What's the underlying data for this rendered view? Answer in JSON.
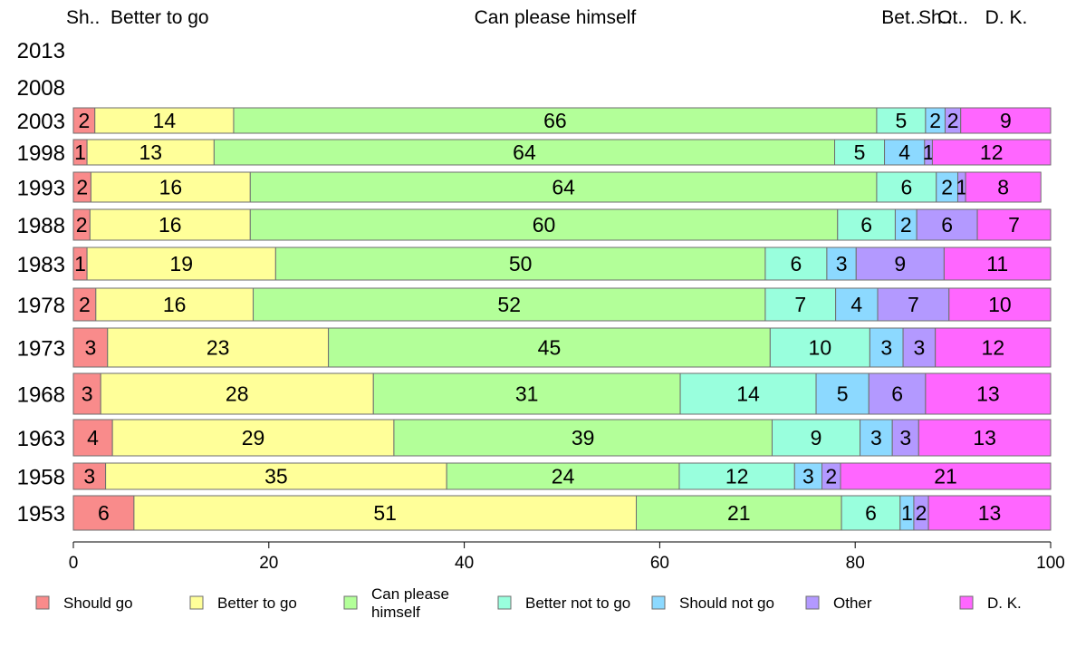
{
  "chart_data": {
    "type": "bar",
    "orientation": "horizontal",
    "stacked": true,
    "xlim": [
      0,
      100
    ],
    "x_ticks": [
      0,
      20,
      40,
      60,
      80,
      100
    ],
    "grid": false,
    "legend_position": "bottom",
    "top_labels": [
      {
        "text": "Sh..",
        "series": "Should go"
      },
      {
        "text": "Better to go",
        "series": "Better to go"
      },
      {
        "text": "Can please himself",
        "series": "Can please himself"
      },
      {
        "text": "Bet..",
        "series": "Better not to go"
      },
      {
        "text": "Sh..",
        "series": "Should not go"
      },
      {
        "text": "Ot..",
        "series": "Other"
      },
      {
        "text": "D. K.",
        "series": "D. K."
      }
    ],
    "categories": [
      "2013",
      "2008",
      "2003",
      "1998",
      "1993",
      "1988",
      "1983",
      "1978",
      "1973",
      "1968",
      "1963",
      "1958",
      "1953"
    ],
    "series": [
      {
        "name": "Should go",
        "legend_label": "Should go",
        "color": "#f98b8b",
        "values": [
          null,
          null,
          2.2,
          1.4,
          1.8,
          1.7,
          1.4,
          2.3,
          3.5,
          2.8,
          4.0,
          3.3,
          6.2
        ]
      },
      {
        "name": "Better to go",
        "legend_label": "Better to go",
        "color": "#ffff99",
        "values": [
          null,
          null,
          14.2,
          13.0,
          16.3,
          16.4,
          19.3,
          16.1,
          22.6,
          27.9,
          28.8,
          34.9,
          51.4
        ]
      },
      {
        "name": "Can please himself",
        "legend_label": "Can please\nhimself",
        "color": "#b3ff99",
        "values": [
          null,
          null,
          65.8,
          63.5,
          64.1,
          60.1,
          50.1,
          52.4,
          45.2,
          31.4,
          38.7,
          23.8,
          21.0
        ]
      },
      {
        "name": "Better not to go",
        "legend_label": "Better not to go",
        "color": "#99ffdd",
        "values": [
          null,
          null,
          5.0,
          5.1,
          6.1,
          5.9,
          6.3,
          7.2,
          10.2,
          13.9,
          9.0,
          11.8,
          6.0
        ]
      },
      {
        "name": "Should not go",
        "legend_label": "Should not go",
        "color": "#8cd9ff",
        "values": [
          null,
          null,
          2.0,
          4.1,
          2.2,
          2.2,
          3.0,
          4.3,
          3.4,
          5.4,
          3.3,
          2.8,
          1.4
        ]
      },
      {
        "name": "Other",
        "legend_label": "Other",
        "color": "#b399ff",
        "values": [
          null,
          null,
          1.6,
          0.8,
          0.8,
          6.2,
          9.0,
          7.3,
          3.3,
          5.8,
          2.7,
          1.9,
          1.5
        ]
      },
      {
        "name": "D. K.",
        "legend_label": "D. K.",
        "color": "#ff66ff",
        "values": [
          null,
          null,
          9.2,
          12.1,
          7.7,
          7.5,
          10.9,
          10.4,
          11.8,
          12.8,
          13.5,
          21.5,
          12.5
        ]
      }
    ],
    "value_labels": [
      null,
      null,
      [
        "2",
        "14",
        "66",
        "5",
        "2",
        "2",
        "9"
      ],
      [
        "1",
        "13",
        "64",
        "5",
        "4",
        "1",
        "12"
      ],
      [
        "2",
        "16",
        "64",
        "6",
        "2",
        "1",
        "8"
      ],
      [
        "2",
        "16",
        "60",
        "6",
        "2",
        "6",
        "7"
      ],
      [
        "1",
        "19",
        "50",
        "6",
        "3",
        "9",
        "11"
      ],
      [
        "2",
        "16",
        "52",
        "7",
        "4",
        "7",
        "10"
      ],
      [
        "3",
        "23",
        "45",
        "10",
        "3",
        "3",
        "12"
      ],
      [
        "3",
        "28",
        "31",
        "14",
        "5",
        "6",
        "13"
      ],
      [
        "4",
        "29",
        "39",
        "9",
        "3",
        "3",
        "13"
      ],
      [
        "3",
        "35",
        "24",
        "12",
        "3",
        "2",
        "21"
      ],
      [
        "6",
        "51",
        "21",
        "6",
        "1",
        "2",
        "13"
      ]
    ]
  }
}
